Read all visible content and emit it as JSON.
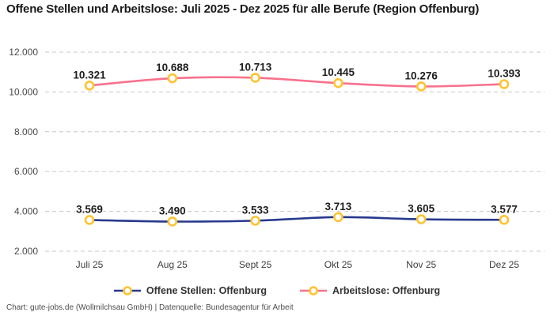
{
  "title": "Offene Stellen und Arbeitslose: Juli 2025 - Dez 2025 für alle Berufe (Region Offenburg)",
  "footer": "Chart: gute-jobs.de (Wollmilchsau GmbH) | Datenquelle: Bundesagentur für Arbeit",
  "colors": {
    "open_positions_line": "#28398e",
    "unemployed_line": "#f8718c",
    "marker_stroke": "#fdc331",
    "marker_fill": "#ffffff",
    "gridline": "#c8c8c8",
    "axis_tick_label": "#4a4a4a",
    "x_tick_label": "#3d3d3d",
    "data_label": "#1d1d1d"
  },
  "chart_data": {
    "type": "line",
    "title": "Offene Stellen und Arbeitslose: Juli 2025 - Dez 2025 für alle Berufe (Region Offenburg)",
    "categories": [
      "Juli 25",
      "Aug 25",
      "Sept 25",
      "Okt 25",
      "Nov 25",
      "Dez 25"
    ],
    "series": [
      {
        "name": "Offene Stellen: Offenburg",
        "color": "#28398e",
        "values": [
          3569,
          3490,
          3533,
          3713,
          3605,
          3577
        ],
        "labels": [
          "3.569",
          "3.490",
          "3.533",
          "3.713",
          "3.605",
          "3.577"
        ]
      },
      {
        "name": "Arbeitslose: Offenburg",
        "color": "#f8718c",
        "values": [
          10321,
          10688,
          10713,
          10445,
          10276,
          10393
        ],
        "labels": [
          "10.321",
          "10.688",
          "10.713",
          "10.445",
          "10.276",
          "10.393"
        ]
      }
    ],
    "y_axis": {
      "range": [
        2000,
        12000
      ],
      "ticks": [
        12000,
        10000,
        8000,
        6000,
        4000,
        2000
      ],
      "tick_labels": [
        "12.000",
        "10.000",
        "8.000",
        "6.000",
        "4.000",
        "2.000"
      ]
    },
    "grid": "horizontal-dashed",
    "legend_position": "bottom",
    "data_labels": true
  }
}
